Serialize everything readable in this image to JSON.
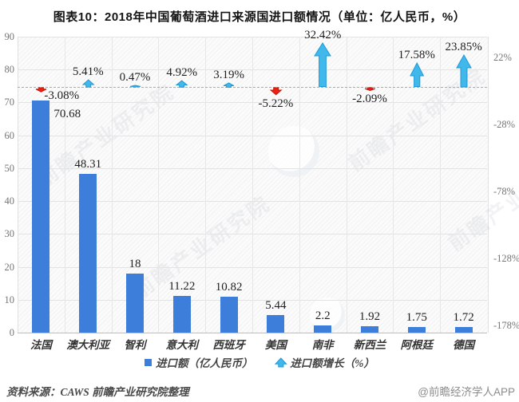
{
  "title": "图表10：2018年中国葡萄酒进口来源国进口额情况（单位：亿人民币，%）",
  "chart_data": {
    "type": "bar",
    "title": "图表10：2018年中国葡萄酒进口来源国进口额情况（单位：亿人民币，%）",
    "categories": [
      "法国",
      "澳大利亚",
      "智利",
      "意大利",
      "西班牙",
      "美国",
      "南非",
      "新西兰",
      "阿根廷",
      "德国"
    ],
    "series": [
      {
        "name": "进口额（亿人民币）",
        "type": "bar",
        "values": [
          70.68,
          48.31,
          18,
          11.22,
          10.82,
          5.44,
          2.2,
          1.92,
          1.75,
          1.72
        ],
        "labels": [
          "70.68",
          "48.31",
          "18",
          "11.22",
          "10.82",
          "5.44",
          "2.2",
          "1.92",
          "1.75",
          "1.72"
        ]
      },
      {
        "name": "进口额增长（%）",
        "type": "arrow",
        "values": [
          -3.08,
          5.41,
          0.47,
          4.92,
          3.19,
          -5.22,
          32.42,
          -2.09,
          17.58,
          23.85
        ],
        "labels": [
          "-3.08%",
          "5.41%",
          "0.47%",
          "4.92%",
          "3.19%",
          "-5.22%",
          "32.42%",
          "-2.09%",
          "17.58%",
          "23.85%"
        ]
      }
    ],
    "left_axis": {
      "min": 0,
      "max": 90,
      "step": 10,
      "tick_labels": [
        "90",
        "80",
        "70",
        "60",
        "50",
        "40",
        "30",
        "20",
        "10",
        "0"
      ]
    },
    "right_axis": {
      "tick_labels": [
        "22%",
        "-28%",
        "-78%",
        "-128%",
        "-178%"
      ],
      "tick_values": [
        22,
        -28,
        -78,
        -128,
        -178
      ]
    },
    "zero_growth_line": "dashed",
    "grid": true,
    "legend_position": "bottom"
  },
  "legend": {
    "items": [
      {
        "label": "进口额（亿人民币）",
        "swatch": "square"
      },
      {
        "label": "进口额增长（%）",
        "swatch": "up-arrow"
      }
    ]
  },
  "footer": {
    "source": "资料来源：CAWS  前瞻产业研究院整理",
    "credit": "@前瞻经济学人APP"
  },
  "watermark": {
    "text": "前瞻产业研究院"
  },
  "colors": {
    "bar": "#3C7ED9",
    "arrow_up": "#41B8EC",
    "arrow_up_border": "#1E9AD6",
    "arrow_down": "#EC2115",
    "arrow_down_border": "#C41508",
    "zero_line": "#ababab",
    "grid": "#e3e3e3"
  }
}
